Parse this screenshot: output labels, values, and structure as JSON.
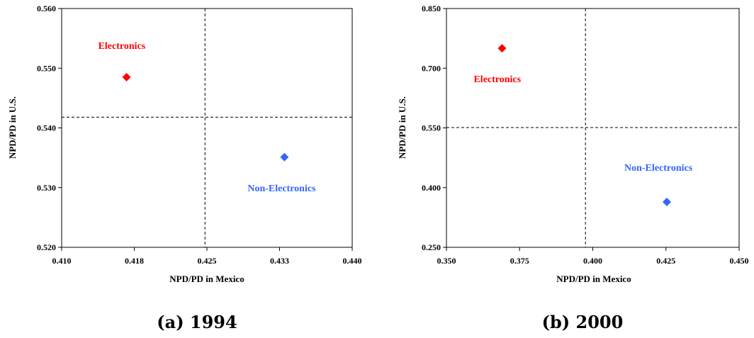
{
  "chart_data": [
    {
      "type": "scatter",
      "caption": "(a) 1994",
      "xlabel": "NPD/PD in Mexico",
      "ylabel": "NPD/PD in U.S.",
      "xlim": [
        0.41,
        0.44
      ],
      "ylim": [
        0.52,
        0.56
      ],
      "xticks": [
        "0.410",
        "0.418",
        "0.425",
        "0.433",
        "0.440"
      ],
      "yticks": [
        "0.520",
        "0.530",
        "0.540",
        "0.550",
        "0.560"
      ],
      "ref_x": 0.4248,
      "ref_y": 0.5418,
      "points": [
        {
          "label": "Electronics",
          "x": 0.4167,
          "y": 0.5485,
          "color": "#ff0000"
        },
        {
          "label": "Non-Electronics",
          "x": 0.433,
          "y": 0.5351,
          "color": "#3366ff"
        }
      ]
    },
    {
      "type": "scatter",
      "caption": "(b) 2000",
      "xlabel": "NPD/PD in Mexico",
      "ylabel": "NPD/PD in U.S.",
      "xlim": [
        0.35,
        0.45
      ],
      "ylim": [
        0.25,
        0.85
      ],
      "xticks": [
        "0.350",
        "0.375",
        "0.400",
        "0.425",
        "0.450"
      ],
      "yticks": [
        "0.250",
        "0.400",
        "0.550",
        "0.700",
        "0.850"
      ],
      "ref_x": 0.3975,
      "ref_y": 0.551,
      "points": [
        {
          "label": "Electronics",
          "x": 0.369,
          "y": 0.75,
          "color": "#ff0000"
        },
        {
          "label": "Non-Electronics",
          "x": 0.4253,
          "y": 0.364,
          "color": "#3366ff"
        }
      ]
    }
  ]
}
